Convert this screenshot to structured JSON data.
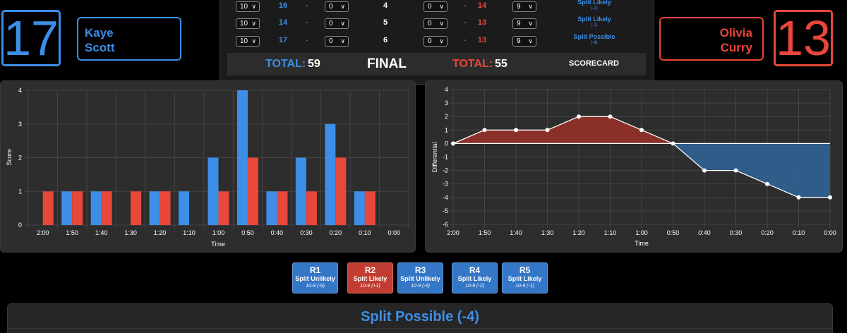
{
  "blue": {
    "score": "17",
    "first_name": "Kaye",
    "last_name": "Scott",
    "color": "#3d8ee6"
  },
  "red": {
    "score": "13",
    "first_name": "Olivia",
    "last_name": "Curry",
    "color": "#e8473a"
  },
  "scorecard": {
    "rows": [
      {
        "blue_sel": "10",
        "blue_val": "16",
        "dash": "-",
        "blue_ded": "0",
        "round": "4",
        "red_ded": "0",
        "red_val": "14",
        "red_sel": "9",
        "note": "Split Likely",
        "note_diff": "(-2)"
      },
      {
        "blue_sel": "10",
        "blue_val": "14",
        "dash": "-",
        "blue_ded": "0",
        "round": "5",
        "red_ded": "0",
        "red_val": "13",
        "red_sel": "9",
        "note": "Split Likely",
        "note_diff": "(-1)"
      },
      {
        "blue_sel": "10",
        "blue_val": "17",
        "dash": "-",
        "blue_ded": "0",
        "round": "6",
        "red_ded": "0",
        "red_val": "13",
        "red_sel": "9",
        "note": "Split Possible",
        "note_diff": "(-4)"
      }
    ],
    "total_label": "TOTAL:",
    "blue_total": "59",
    "status": "FINAL",
    "red_total": "55",
    "link": "SCORECARD"
  },
  "chart_data": [
    {
      "type": "bar",
      "xlabel": "Time",
      "ylabel": "Score",
      "ylim": [
        0,
        4
      ],
      "yticks": [
        "0",
        "1",
        "2",
        "3",
        "4"
      ],
      "categories": [
        "2:00",
        "1:50",
        "1:40",
        "1:30",
        "1:20",
        "1:10",
        "1:00",
        "0:50",
        "0:40",
        "0:30",
        "0:20",
        "0:10",
        "0:00"
      ],
      "series": [
        {
          "color": "#3d8ee6",
          "values": [
            0,
            1,
            1,
            0,
            1,
            1,
            2,
            4,
            1,
            2,
            3,
            1,
            0
          ]
        },
        {
          "color": "#e8473a",
          "values": [
            1,
            1,
            1,
            1,
            1,
            0,
            1,
            2,
            1,
            1,
            2,
            1,
            0
          ]
        }
      ]
    },
    {
      "type": "area",
      "xlabel": "Time",
      "ylabel": "Differential",
      "ylim": [
        -6,
        4
      ],
      "yticks": [
        "-6",
        "-5",
        "-4",
        "-3",
        "-2",
        "-1",
        "0",
        "1",
        "2",
        "3",
        "4"
      ],
      "categories": [
        "2:00",
        "1:50",
        "1:40",
        "1:30",
        "1:20",
        "1:10",
        "1:00",
        "0:50",
        "0:40",
        "0:30",
        "0:20",
        "0:10",
        "0:00"
      ],
      "values": [
        0,
        1,
        1,
        1,
        2,
        2,
        1,
        0,
        -2,
        -2,
        -3,
        -4,
        -4
      ],
      "positive_color": "#8f3028",
      "negative_color": "#2f5f8e"
    }
  ],
  "rounds": [
    {
      "label": "R1",
      "status": "Split Unlikely",
      "detail": "10-9 (-6)",
      "color": "blue"
    },
    {
      "label": "R2",
      "status": "Split Likely",
      "detail": "10-9 (+1)",
      "color": "red"
    },
    {
      "label": "R3",
      "status": "Split Unlikely",
      "detail": "10-9 (-6)",
      "color": "blue"
    },
    {
      "label": "R4",
      "status": "Split Likely",
      "detail": "10-9 (-2)",
      "color": "blue"
    },
    {
      "label": "R5",
      "status": "Split Likely",
      "detail": "10-9 (-1)",
      "color": "blue"
    }
  ],
  "verdict": {
    "title": "Split Possible (-4)"
  }
}
